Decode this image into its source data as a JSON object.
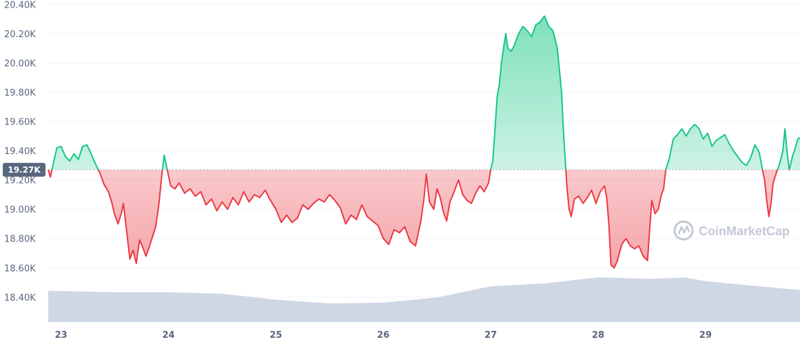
{
  "chart_data": {
    "type": "line",
    "x_unit": "day of month",
    "xlim": [
      22.88,
      29.88
    ],
    "ylim": [
      18.23,
      20.43
    ],
    "y_unit": "thousand USD",
    "grid": true,
    "reference_value": 19.27,
    "reference_label": "19.27K",
    "y_ticks": [
      {
        "value": 18.4,
        "label": "18.40K"
      },
      {
        "value": 18.6,
        "label": "18.60K"
      },
      {
        "value": 18.8,
        "label": "18.80K"
      },
      {
        "value": 19.0,
        "label": "19.00K"
      },
      {
        "value": 19.2,
        "label": "19.20K"
      },
      {
        "value": 19.4,
        "label": "19.40K"
      },
      {
        "value": 19.6,
        "label": "19.60K"
      },
      {
        "value": 19.8,
        "label": "19.80K"
      },
      {
        "value": 20.0,
        "label": "20.00K"
      },
      {
        "value": 20.2,
        "label": "20.20K"
      },
      {
        "value": 20.4,
        "label": "20.40K"
      }
    ],
    "x_ticks": [
      {
        "value": 23,
        "label": "23"
      },
      {
        "value": 24,
        "label": "24"
      },
      {
        "value": 25,
        "label": "25"
      },
      {
        "value": 26,
        "label": "26"
      },
      {
        "value": 27,
        "label": "27"
      },
      {
        "value": 28,
        "label": "28"
      },
      {
        "value": 29,
        "label": "29"
      }
    ],
    "series": [
      {
        "color_up": "#16c784",
        "color_down": "#ea3943",
        "points": [
          [
            22.88,
            19.27
          ],
          [
            22.9,
            19.22
          ],
          [
            22.93,
            19.32
          ],
          [
            22.96,
            19.42
          ],
          [
            23.0,
            19.43
          ],
          [
            23.04,
            19.36
          ],
          [
            23.08,
            19.33
          ],
          [
            23.12,
            19.38
          ],
          [
            23.16,
            19.34
          ],
          [
            23.2,
            19.43
          ],
          [
            23.24,
            19.44
          ],
          [
            23.28,
            19.38
          ],
          [
            23.32,
            19.31
          ],
          [
            23.36,
            19.25
          ],
          [
            23.4,
            19.17
          ],
          [
            23.44,
            19.12
          ],
          [
            23.47,
            19.05
          ],
          [
            23.5,
            18.96
          ],
          [
            23.53,
            18.9
          ],
          [
            23.56,
            18.97
          ],
          [
            23.58,
            19.04
          ],
          [
            23.61,
            18.85
          ],
          [
            23.64,
            18.66
          ],
          [
            23.67,
            18.72
          ],
          [
            23.7,
            18.63
          ],
          [
            23.73,
            18.79
          ],
          [
            23.76,
            18.74
          ],
          [
            23.79,
            18.68
          ],
          [
            23.82,
            18.74
          ],
          [
            23.85,
            18.81
          ],
          [
            23.88,
            18.88
          ],
          [
            23.91,
            19.03
          ],
          [
            23.94,
            19.25
          ],
          [
            23.96,
            19.37
          ],
          [
            23.98,
            19.3
          ],
          [
            24.02,
            19.16
          ],
          [
            24.06,
            19.14
          ],
          [
            24.1,
            19.18
          ],
          [
            24.15,
            19.11
          ],
          [
            24.2,
            19.14
          ],
          [
            24.25,
            19.09
          ],
          [
            24.3,
            19.12
          ],
          [
            24.35,
            19.03
          ],
          [
            24.4,
            19.07
          ],
          [
            24.45,
            18.99
          ],
          [
            24.5,
            19.05
          ],
          [
            24.55,
            19.0
          ],
          [
            24.6,
            19.08
          ],
          [
            24.65,
            19.03
          ],
          [
            24.7,
            19.12
          ],
          [
            24.75,
            19.05
          ],
          [
            24.8,
            19.1
          ],
          [
            24.85,
            19.08
          ],
          [
            24.9,
            19.13
          ],
          [
            24.95,
            19.06
          ],
          [
            25.0,
            19.0
          ],
          [
            25.05,
            18.91
          ],
          [
            25.1,
            18.96
          ],
          [
            25.15,
            18.91
          ],
          [
            25.2,
            18.94
          ],
          [
            25.25,
            19.03
          ],
          [
            25.3,
            19.0
          ],
          [
            25.35,
            19.04
          ],
          [
            25.4,
            19.07
          ],
          [
            25.45,
            19.05
          ],
          [
            25.5,
            19.1
          ],
          [
            25.55,
            19.06
          ],
          [
            25.6,
            19.01
          ],
          [
            25.65,
            18.9
          ],
          [
            25.7,
            18.96
          ],
          [
            25.75,
            18.93
          ],
          [
            25.8,
            19.03
          ],
          [
            25.85,
            18.95
          ],
          [
            25.9,
            18.92
          ],
          [
            25.95,
            18.89
          ],
          [
            26.0,
            18.8
          ],
          [
            26.05,
            18.76
          ],
          [
            26.1,
            18.86
          ],
          [
            26.15,
            18.84
          ],
          [
            26.2,
            18.88
          ],
          [
            26.25,
            18.78
          ],
          [
            26.3,
            18.75
          ],
          [
            26.35,
            18.92
          ],
          [
            26.38,
            19.08
          ],
          [
            26.4,
            19.24
          ],
          [
            26.43,
            19.05
          ],
          [
            26.47,
            19.0
          ],
          [
            26.5,
            19.14
          ],
          [
            26.53,
            19.08
          ],
          [
            26.56,
            18.98
          ],
          [
            26.59,
            18.92
          ],
          [
            26.62,
            19.05
          ],
          [
            26.66,
            19.12
          ],
          [
            26.7,
            19.2
          ],
          [
            26.74,
            19.1
          ],
          [
            26.78,
            19.06
          ],
          [
            26.82,
            19.04
          ],
          [
            26.86,
            19.11
          ],
          [
            26.9,
            19.16
          ],
          [
            26.94,
            19.12
          ],
          [
            26.98,
            19.18
          ],
          [
            27.0,
            19.27
          ],
          [
            27.02,
            19.33
          ],
          [
            27.04,
            19.55
          ],
          [
            27.06,
            19.77
          ],
          [
            27.08,
            19.85
          ],
          [
            27.1,
            20.0
          ],
          [
            27.12,
            20.1
          ],
          [
            27.14,
            20.2
          ],
          [
            27.16,
            20.1
          ],
          [
            27.19,
            20.08
          ],
          [
            27.22,
            20.12
          ],
          [
            27.26,
            20.2
          ],
          [
            27.3,
            20.25
          ],
          [
            27.34,
            20.22
          ],
          [
            27.38,
            20.18
          ],
          [
            27.42,
            20.26
          ],
          [
            27.46,
            20.28
          ],
          [
            27.5,
            20.32
          ],
          [
            27.54,
            20.25
          ],
          [
            27.58,
            20.22
          ],
          [
            27.62,
            20.1
          ],
          [
            27.66,
            19.8
          ],
          [
            27.68,
            19.5
          ],
          [
            27.7,
            19.27
          ],
          [
            27.71,
            19.15
          ],
          [
            27.73,
            19.0
          ],
          [
            27.75,
            18.95
          ],
          [
            27.78,
            19.07
          ],
          [
            27.82,
            19.09
          ],
          [
            27.86,
            19.04
          ],
          [
            27.9,
            19.08
          ],
          [
            27.94,
            19.13
          ],
          [
            27.98,
            19.04
          ],
          [
            28.02,
            19.12
          ],
          [
            28.06,
            19.16
          ],
          [
            28.08,
            19.08
          ],
          [
            28.1,
            18.9
          ],
          [
            28.12,
            18.62
          ],
          [
            28.15,
            18.6
          ],
          [
            28.18,
            18.65
          ],
          [
            28.22,
            18.76
          ],
          [
            28.26,
            18.8
          ],
          [
            28.3,
            18.75
          ],
          [
            28.34,
            18.73
          ],
          [
            28.38,
            18.75
          ],
          [
            28.42,
            18.68
          ],
          [
            28.46,
            18.65
          ],
          [
            28.48,
            18.86
          ],
          [
            28.5,
            19.06
          ],
          [
            28.53,
            18.97
          ],
          [
            28.56,
            19.0
          ],
          [
            28.59,
            19.1
          ],
          [
            28.61,
            19.14
          ],
          [
            28.63,
            19.27
          ],
          [
            28.66,
            19.34
          ],
          [
            28.7,
            19.48
          ],
          [
            28.74,
            19.51
          ],
          [
            28.78,
            19.55
          ],
          [
            28.82,
            19.5
          ],
          [
            28.86,
            19.55
          ],
          [
            28.9,
            19.58
          ],
          [
            28.94,
            19.55
          ],
          [
            28.98,
            19.48
          ],
          [
            29.02,
            19.52
          ],
          [
            29.06,
            19.43
          ],
          [
            29.1,
            19.47
          ],
          [
            29.14,
            19.49
          ],
          [
            29.18,
            19.51
          ],
          [
            29.22,
            19.45
          ],
          [
            29.26,
            19.4
          ],
          [
            29.3,
            19.36
          ],
          [
            29.34,
            19.32
          ],
          [
            29.38,
            19.3
          ],
          [
            29.42,
            19.35
          ],
          [
            29.46,
            19.44
          ],
          [
            29.5,
            19.39
          ],
          [
            29.53,
            19.27
          ],
          [
            29.55,
            19.2
          ],
          [
            29.57,
            19.06
          ],
          [
            29.59,
            18.95
          ],
          [
            29.61,
            19.04
          ],
          [
            29.63,
            19.18
          ],
          [
            29.66,
            19.25
          ],
          [
            29.69,
            19.31
          ],
          [
            29.72,
            19.4
          ],
          [
            29.74,
            19.55
          ],
          [
            29.76,
            19.39
          ],
          [
            29.78,
            19.27
          ],
          [
            29.81,
            19.36
          ],
          [
            29.84,
            19.43
          ],
          [
            29.86,
            19.48
          ],
          [
            29.88,
            19.49
          ]
        ]
      }
    ],
    "volume": {
      "color": "#cfd6e4",
      "points": [
        [
          22.88,
          0.42
        ],
        [
          23.5,
          0.4
        ],
        [
          24.0,
          0.4
        ],
        [
          24.5,
          0.38
        ],
        [
          25.0,
          0.3
        ],
        [
          25.5,
          0.25
        ],
        [
          26.0,
          0.26
        ],
        [
          26.5,
          0.33
        ],
        [
          27.0,
          0.48
        ],
        [
          27.5,
          0.52
        ],
        [
          28.0,
          0.6
        ],
        [
          28.5,
          0.58
        ],
        [
          28.8,
          0.6
        ],
        [
          29.0,
          0.55
        ],
        [
          29.5,
          0.48
        ],
        [
          29.88,
          0.43
        ]
      ]
    }
  },
  "watermark": {
    "text": "CoinMarketCap"
  },
  "colors": {
    "grid": "#eff2f5",
    "ref_line": "#a6b0c3",
    "badge_bg": "#58667e",
    "axis_text": "#58667e"
  }
}
